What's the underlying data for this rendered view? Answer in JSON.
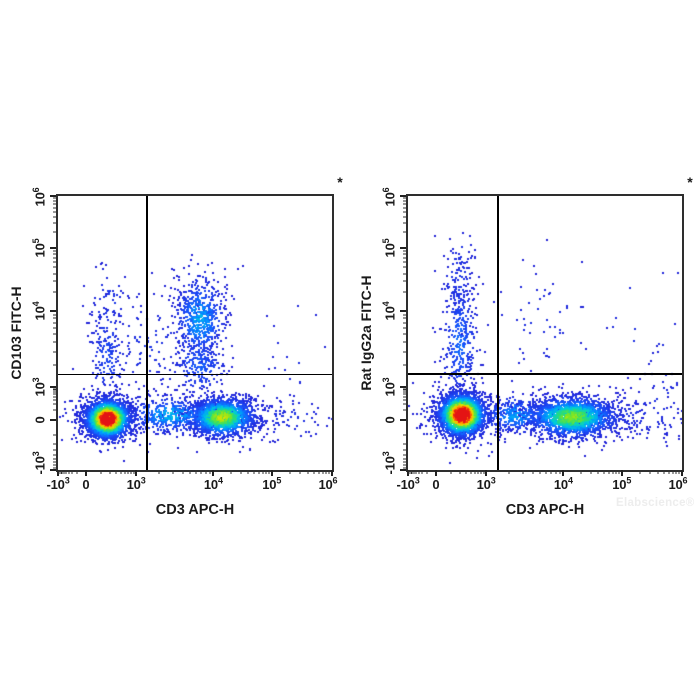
{
  "watermark": {
    "text": "Elabscience®"
  },
  "style": {
    "background": "#ffffff",
    "frame_color": "#2e2e2e",
    "quadrant_line_color": "#000000",
    "dot_size": 2,
    "colormap": [
      [
        0.0,
        35,
        35,
        215
      ],
      [
        0.16,
        25,
        80,
        250
      ],
      [
        0.3,
        0,
        150,
        255
      ],
      [
        0.42,
        0,
        205,
        215
      ],
      [
        0.54,
        40,
        220,
        120
      ],
      [
        0.66,
        120,
        230,
        40
      ],
      [
        0.76,
        220,
        225,
        0
      ],
      [
        0.85,
        255,
        180,
        0
      ],
      [
        0.92,
        255,
        100,
        0
      ],
      [
        1.0,
        228,
        20,
        20
      ]
    ]
  },
  "axes": {
    "x_ticks": [
      {
        "base": "-10",
        "exp": "3",
        "frac": 0.0,
        "tick_frac": 0.0
      },
      {
        "base": "0",
        "exp": "",
        "frac": 0.102,
        "tick_frac": 0.102
      },
      {
        "base": "10",
        "exp": "3",
        "frac": 0.285,
        "tick_frac": 0.285
      },
      {
        "base": "10",
        "exp": "4",
        "frac": 0.567,
        "tick_frac": 0.567
      },
      {
        "base": "10",
        "exp": "5",
        "frac": 0.78,
        "tick_frac": 0.78
      },
      {
        "base": "10",
        "exp": "6",
        "frac": 0.985,
        "tick_frac": 1.0
      }
    ],
    "y_ticks": [
      {
        "base": "10",
        "exp": "6",
        "frac": 0.005,
        "tick_frac": 0.0
      },
      {
        "base": "10",
        "exp": "5",
        "frac": 0.19,
        "tick_frac": 0.19
      },
      {
        "base": "10",
        "exp": "4",
        "frac": 0.42,
        "tick_frac": 0.42
      },
      {
        "base": "10",
        "exp": "3",
        "frac": 0.697,
        "tick_frac": 0.697
      },
      {
        "base": "0",
        "exp": "",
        "frac": 0.818,
        "tick_frac": 0.818
      },
      {
        "base": "-10",
        "exp": "3",
        "frac": 0.975,
        "tick_frac": 1.0
      }
    ],
    "x_minor": [
      0.005,
      0.01,
      0.016,
      0.022,
      0.03,
      0.04,
      0.052,
      0.07,
      0.156,
      0.188,
      0.211,
      0.229,
      0.244,
      0.256,
      0.267,
      0.277,
      0.37,
      0.42,
      0.455,
      0.482,
      0.504,
      0.523,
      0.54,
      0.554,
      0.631,
      0.669,
      0.695,
      0.716,
      0.733,
      0.747,
      0.759,
      0.77,
      0.846,
      0.885,
      0.912,
      0.934,
      0.951,
      0.966,
      0.979,
      0.99
    ],
    "y_minor": [
      0.009,
      0.018,
      0.029,
      0.042,
      0.057,
      0.076,
      0.1,
      0.133,
      0.201,
      0.212,
      0.225,
      0.241,
      0.26,
      0.283,
      0.312,
      0.351,
      0.433,
      0.447,
      0.463,
      0.482,
      0.505,
      0.533,
      0.568,
      0.615,
      0.703,
      0.709,
      0.716,
      0.724,
      0.733,
      0.745,
      0.76,
      0.782,
      0.873,
      0.905,
      0.928,
      0.945,
      0.96,
      0.972,
      0.982,
      0.992
    ]
  },
  "chart_data": [
    {
      "type": "scatter",
      "subtype": "flow-cytometry-pseudocolor-density",
      "xlabel": "CD3 APC-H",
      "ylabel": "CD103 FITC-H",
      "annotation": "*",
      "x_scale": "biexponential",
      "y_scale": "biexponential",
      "x_range": [
        -1000,
        1000000
      ],
      "y_range": [
        -1000,
        1000000
      ],
      "gates": {
        "x_value": 1200,
        "y_value": 1400,
        "v_frac": 0.325,
        "h_frac": 0.652
      },
      "populations": [
        {
          "name": "cd3neg-fitcneg-main-core",
          "approx_x": 250,
          "approx_y": 300,
          "cx": 0.182,
          "cy": 0.814,
          "sx": 10.5,
          "sy": 9,
          "n": 2600,
          "peak": 1.03
        },
        {
          "name": "cd3neg-fitcneg-main-halo",
          "approx_x": 250,
          "approx_y": 300,
          "cx": 0.182,
          "cy": 0.81,
          "sx": 19,
          "sy": 14,
          "n": 340,
          "peak": 0.12
        },
        {
          "name": "cd3pos-fitcneg-core",
          "approx_x": 10000,
          "approx_y": 300,
          "cx": 0.599,
          "cy": 0.807,
          "sx": 16,
          "sy": 9,
          "n": 1550,
          "peak": 0.62
        },
        {
          "name": "cd3pos-fitcneg-halo",
          "approx_x": 10000,
          "approx_y": 300,
          "cx": 0.59,
          "cy": 0.805,
          "sx": 28,
          "sy": 13,
          "n": 280,
          "peak": 0.11
        },
        {
          "name": "bridge-band",
          "approx_x": 2500,
          "approx_y": 300,
          "cx": 0.41,
          "cy": 0.8,
          "sx": 21,
          "sy": 8.5,
          "n": 430,
          "peak": 0.33
        },
        {
          "name": "cd3pos-cd103pos-blob",
          "approx_x": 5000,
          "approx_y": 6000,
          "cx": 0.518,
          "cy": 0.45,
          "sx": 12,
          "sy": 20,
          "n": 520,
          "peak": 0.3
        },
        {
          "name": "cd103-blob-tail",
          "approx_x": 5000,
          "approx_y": 1500,
          "cx": 0.518,
          "cy": 0.615,
          "sx": 13,
          "sy": 15,
          "n": 230,
          "peak": 0.17
        },
        {
          "name": "cd3neg-cd103-column",
          "approx_x": 250,
          "approx_y": 3000,
          "cx": 0.179,
          "cy": 0.575,
          "sx": 9,
          "sy": 26,
          "n": 150,
          "peak": 0.12
        },
        {
          "name": "cd3neg-cd103-column-high",
          "approx_x": 250,
          "approx_y": 12000,
          "cx": 0.185,
          "cy": 0.38,
          "sx": 11,
          "sy": 18,
          "n": 55,
          "peak": 0.07
        },
        {
          "name": "mid-sparse",
          "approx_x": 1500,
          "approx_y": 4000,
          "cx": 0.335,
          "cy": 0.545,
          "sx": 26,
          "sy": 28,
          "n": 110,
          "peak": 0.06
        },
        {
          "name": "right-sparse-low",
          "approx_x": 80000,
          "approx_y": 300,
          "cx": 0.83,
          "cy": 0.81,
          "sx": 26,
          "sy": 11,
          "n": 70,
          "peak": 0.06
        },
        {
          "name": "right-sparse-high",
          "approx_x": 100000,
          "approx_y": 4000,
          "cx": 0.88,
          "cy": 0.56,
          "sx": 18,
          "sy": 38,
          "n": 16,
          "peak": 0.05
        },
        {
          "name": "blob-top-sparse",
          "approx_x": 5000,
          "approx_y": 15000,
          "cx": 0.52,
          "cy": 0.33,
          "sx": 14,
          "sy": 13,
          "n": 45,
          "peak": 0.06
        }
      ]
    },
    {
      "type": "scatter",
      "subtype": "flow-cytometry-pseudocolor-density",
      "xlabel": "CD3 APC-H",
      "ylabel": "Rat IgG2a FITC-H",
      "annotation": "*",
      "x_scale": "biexponential",
      "y_scale": "biexponential",
      "x_range": [
        -1000,
        1000000
      ],
      "y_range": [
        -1000,
        1000000
      ],
      "gates": {
        "x_value": 1200,
        "y_value": 1400,
        "v_frac": 0.328,
        "h_frac": 0.65
      },
      "populations": [
        {
          "name": "cd3neg-fitcneg-main-core",
          "approx_x": 250,
          "approx_y": 300,
          "cx": 0.197,
          "cy": 0.799,
          "sx": 11,
          "sy": 10,
          "n": 2700,
          "peak": 1.03
        },
        {
          "name": "cd3neg-fitcneg-main-halo",
          "approx_x": 250,
          "approx_y": 300,
          "cx": 0.197,
          "cy": 0.8,
          "sx": 19,
          "sy": 16,
          "n": 360,
          "peak": 0.12
        },
        {
          "name": "cd3pos-fitcneg-core",
          "approx_x": 10000,
          "approx_y": 300,
          "cx": 0.599,
          "cy": 0.807,
          "sx": 21,
          "sy": 9.5,
          "n": 1750,
          "peak": 0.58
        },
        {
          "name": "cd3pos-fitcneg-halo",
          "approx_x": 10000,
          "approx_y": 300,
          "cx": 0.59,
          "cy": 0.805,
          "sx": 33,
          "sy": 13,
          "n": 300,
          "peak": 0.1
        },
        {
          "name": "bridge-band",
          "approx_x": 2500,
          "approx_y": 300,
          "cx": 0.39,
          "cy": 0.8,
          "sx": 16,
          "sy": 9,
          "n": 300,
          "peak": 0.28
        },
        {
          "name": "igg-neg-column",
          "approx_x": 250,
          "approx_y": 3000,
          "cx": 0.19,
          "cy": 0.53,
          "sx": 8.5,
          "sy": 30,
          "n": 330,
          "peak": 0.19
        },
        {
          "name": "igg-neg-column-high",
          "approx_x": 250,
          "approx_y": 12000,
          "cx": 0.185,
          "cy": 0.31,
          "sx": 9,
          "sy": 20,
          "n": 90,
          "peak": 0.08
        },
        {
          "name": "column-top-sparse",
          "approx_x": 250,
          "approx_y": 50000,
          "cx": 0.19,
          "cy": 0.2,
          "sx": 10,
          "sy": 12,
          "n": 16,
          "peak": 0.05
        },
        {
          "name": "upper-mid-sparse",
          "approx_x": 3000,
          "approx_y": 6000,
          "cx": 0.48,
          "cy": 0.46,
          "sx": 30,
          "sy": 30,
          "n": 55,
          "peak": 0.05
        },
        {
          "name": "right-sparse-low",
          "approx_x": 50000,
          "approx_y": 300,
          "cx": 0.8,
          "cy": 0.8,
          "sx": 30,
          "sy": 13,
          "n": 110,
          "peak": 0.06
        },
        {
          "name": "far-right-sparse",
          "approx_x": 300000,
          "approx_y": 600,
          "cx": 0.925,
          "cy": 0.745,
          "sx": 12,
          "sy": 28,
          "n": 40,
          "peak": 0.05
        },
        {
          "name": "upper-right-sparse",
          "approx_x": 100000,
          "approx_y": 6000,
          "cx": 0.85,
          "cy": 0.46,
          "sx": 30,
          "sy": 42,
          "n": 12,
          "peak": 0.05
        }
      ]
    }
  ]
}
